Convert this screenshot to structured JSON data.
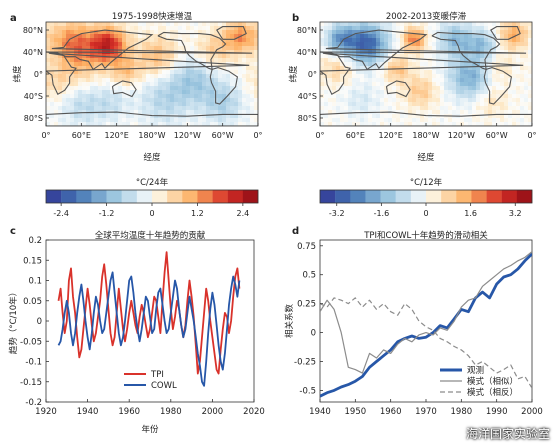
{
  "watermark": "海洋国家实验室",
  "chart_data": [
    {
      "panel": "a",
      "type": "heatmap",
      "title": "1975-1998快速增温",
      "ylabel": "纬度",
      "xlabel": "经度",
      "x_ticks": [
        "0°",
        "60°E",
        "120°E",
        "180°W",
        "120°W",
        "60°W",
        "0°"
      ],
      "y_ticks": [
        "80°N",
        "40°N",
        "0°",
        "40°S",
        "80°S"
      ],
      "colorbar": {
        "label": "°C/24年",
        "ticks": [
          "-2.4",
          "-1.2",
          "0",
          "1.2",
          "2.4"
        ],
        "range": [
          -2.8,
          2.8
        ]
      },
      "anomalies": [
        {
          "lon": 105,
          "lat": 50,
          "value": 2.2,
          "spread": 22
        },
        {
          "lon": 45,
          "lat": 55,
          "value": 1.4,
          "spread": 26
        },
        {
          "lon": 330,
          "lat": 65,
          "value": 1.3,
          "spread": 20
        },
        {
          "lon": 60,
          "lat": 15,
          "value": 0.6,
          "spread": 25
        },
        {
          "lon": 190,
          "lat": 30,
          "value": 0.9,
          "spread": 25
        },
        {
          "lon": 135,
          "lat": 5,
          "value": 0.8,
          "spread": 18
        },
        {
          "lon": 285,
          "lat": 40,
          "value": 0.7,
          "spread": 22
        },
        {
          "lon": 250,
          "lat": -10,
          "value": -0.9,
          "spread": 28
        },
        {
          "lon": 200,
          "lat": -45,
          "value": -0.7,
          "spread": 30
        },
        {
          "lon": 300,
          "lat": -50,
          "value": -0.8,
          "spread": 25
        },
        {
          "lon": 60,
          "lat": -55,
          "value": -0.6,
          "spread": 25
        },
        {
          "lon": 15,
          "lat": -15,
          "value": 0.5,
          "spread": 22
        },
        {
          "lon": 110,
          "lat": -50,
          "value": -0.5,
          "spread": 22
        }
      ]
    },
    {
      "panel": "b",
      "type": "heatmap",
      "title": "2002-2013变暖停滞",
      "ylabel": "纬度",
      "xlabel": "经度",
      "x_ticks": [
        "0°",
        "60°E",
        "120°E",
        "180°W",
        "120°W",
        "60°W",
        "0°"
      ],
      "y_ticks": [
        "80°N",
        "40°N",
        "0°",
        "40°S",
        "80°S"
      ],
      "colorbar": {
        "label": "°C/12年",
        "ticks": [
          "-3.2",
          "-1.6",
          "0",
          "1.6",
          "3.2"
        ],
        "range": [
          -3.8,
          3.8
        ]
      },
      "anomalies": [
        {
          "lon": 80,
          "lat": 52,
          "value": -3.0,
          "spread": 24
        },
        {
          "lon": 35,
          "lat": 60,
          "value": -2.0,
          "spread": 18
        },
        {
          "lon": 160,
          "lat": 60,
          "value": 2.0,
          "spread": 14
        },
        {
          "lon": 330,
          "lat": 68,
          "value": 1.5,
          "spread": 18
        },
        {
          "lon": 230,
          "lat": 60,
          "value": -1.6,
          "spread": 20
        },
        {
          "lon": 275,
          "lat": 50,
          "value": -1.4,
          "spread": 18
        },
        {
          "lon": 255,
          "lat": -5,
          "value": -1.8,
          "spread": 26
        },
        {
          "lon": 130,
          "lat": 10,
          "value": 1.2,
          "spread": 16
        },
        {
          "lon": 170,
          "lat": -30,
          "value": 1.0,
          "spread": 20
        },
        {
          "lon": 30,
          "lat": 10,
          "value": 0.8,
          "spread": 20
        },
        {
          "lon": 300,
          "lat": 10,
          "value": 0.7,
          "spread": 18
        },
        {
          "lon": 290,
          "lat": -45,
          "value": 0.6,
          "spread": 20
        },
        {
          "lon": 70,
          "lat": -45,
          "value": -0.5,
          "spread": 22
        }
      ]
    },
    {
      "panel": "c",
      "type": "line",
      "title": "全球平均温度十年趋势的贡献",
      "xlabel": "年份",
      "ylabel": "趋势（°C/10年）",
      "xlim": [
        1920,
        2020
      ],
      "ylim": [
        -0.2,
        0.2
      ],
      "x_ticks": [
        1920,
        1940,
        1960,
        1980,
        2000,
        2020
      ],
      "y_ticks": [
        -0.2,
        -0.15,
        -0.1,
        -0.05,
        0,
        0.05,
        0.1,
        0.15,
        0.2
      ],
      "y_tick_labels": [
        "-0.2",
        "-0.15",
        "-0.1",
        "-0.05",
        "0",
        "0.05",
        "0.1",
        "0.15",
        "0.2"
      ],
      "legend_position": "bottom-center",
      "series": [
        {
          "name": "TPI",
          "color": "#d9322b",
          "x": [
            1926,
            1927,
            1928,
            1929,
            1930,
            1931,
            1932,
            1933,
            1934,
            1935,
            1936,
            1937,
            1938,
            1939,
            1940,
            1941,
            1942,
            1943,
            1944,
            1945,
            1946,
            1947,
            1948,
            1949,
            1950,
            1951,
            1952,
            1953,
            1954,
            1955,
            1956,
            1957,
            1958,
            1959,
            1960,
            1961,
            1962,
            1963,
            1964,
            1965,
            1966,
            1967,
            1968,
            1969,
            1970,
            1971,
            1972,
            1973,
            1974,
            1975,
            1976,
            1977,
            1978,
            1979,
            1980,
            1981,
            1982,
            1983,
            1984,
            1985,
            1986,
            1987,
            1988,
            1989,
            1990,
            1991,
            1992,
            1993,
            1994,
            1995,
            1996,
            1997,
            1998,
            1999,
            2000,
            2001,
            2002,
            2003,
            2004,
            2005,
            2006,
            2007,
            2008,
            2009,
            2010,
            2011,
            2012,
            2013
          ],
          "y": [
            0.05,
            0.08,
            0.02,
            -0.03,
            0.0,
            0.1,
            0.13,
            0.06,
            0.02,
            -0.04,
            -0.09,
            -0.07,
            -0.02,
            0.03,
            0.08,
            0.04,
            -0.01,
            -0.05,
            -0.03,
            0.01,
            0.05,
            0.11,
            0.14,
            0.09,
            0.03,
            -0.03,
            -0.06,
            -0.04,
            0.02,
            0.08,
            0.03,
            -0.02,
            -0.05,
            -0.02,
            0.02,
            0.05,
            0.02,
            -0.01,
            -0.03,
            0.01,
            0.04,
            0.02,
            -0.01,
            -0.04,
            -0.02,
            0.02,
            0.06,
            0.05,
            0.01,
            -0.03,
            0.05,
            0.12,
            0.17,
            0.1,
            0.03,
            -0.02,
            0.01,
            0.05,
            0.03,
            -0.01,
            -0.04,
            -0.01,
            0.05,
            0.1,
            0.06,
            0.01,
            -0.06,
            -0.13,
            -0.1,
            -0.04,
            0.02,
            0.08,
            0.05,
            0.0,
            -0.04,
            -0.08,
            -0.12,
            -0.13,
            -0.07,
            -0.02,
            0.02,
            0.01,
            -0.03,
            0.0,
            0.06,
            0.11,
            0.13,
            0.08
          ]
        },
        {
          "name": "COWL",
          "color": "#2757a8",
          "x": [
            1926,
            1927,
            1928,
            1929,
            1930,
            1931,
            1932,
            1933,
            1934,
            1935,
            1936,
            1937,
            1938,
            1939,
            1940,
            1941,
            1942,
            1943,
            1944,
            1945,
            1946,
            1947,
            1948,
            1949,
            1950,
            1951,
            1952,
            1953,
            1954,
            1955,
            1956,
            1957,
            1958,
            1959,
            1960,
            1961,
            1962,
            1963,
            1964,
            1965,
            1966,
            1967,
            1968,
            1969,
            1970,
            1971,
            1972,
            1973,
            1974,
            1975,
            1976,
            1977,
            1978,
            1979,
            1980,
            1981,
            1982,
            1983,
            1984,
            1985,
            1986,
            1987,
            1988,
            1989,
            1990,
            1991,
            1992,
            1993,
            1994,
            1995,
            1996,
            1997,
            1998,
            1999,
            2000,
            2001,
            2002,
            2003,
            2004,
            2005,
            2006,
            2007,
            2008,
            2009,
            2010,
            2011,
            2012,
            2013
          ],
          "y": [
            -0.06,
            -0.05,
            -0.02,
            0.02,
            0.05,
            0.02,
            -0.03,
            -0.06,
            -0.03,
            0.02,
            0.06,
            0.09,
            0.05,
            0.0,
            -0.04,
            -0.07,
            -0.03,
            0.02,
            0.06,
            0.04,
            0.0,
            -0.03,
            -0.02,
            0.02,
            0.06,
            0.1,
            0.12,
            0.07,
            0.02,
            -0.03,
            -0.06,
            -0.04,
            0.0,
            0.05,
            0.1,
            0.11,
            0.07,
            0.02,
            -0.02,
            -0.05,
            -0.02,
            0.02,
            0.06,
            0.05,
            0.01,
            -0.03,
            -0.02,
            0.03,
            0.07,
            0.08,
            0.04,
            0.0,
            -0.03,
            -0.02,
            0.02,
            0.06,
            0.1,
            0.08,
            0.03,
            -0.01,
            -0.04,
            -0.02,
            0.02,
            0.06,
            0.03,
            0.0,
            -0.04,
            -0.08,
            -0.11,
            -0.15,
            -0.16,
            -0.1,
            -0.03,
            0.03,
            0.07,
            0.04,
            -0.01,
            -0.06,
            -0.1,
            -0.12,
            -0.08,
            -0.02,
            0.04,
            0.08,
            0.11,
            0.09,
            0.06,
            0.1
          ]
        }
      ]
    },
    {
      "panel": "d",
      "type": "line",
      "title": "TPI和COWL十年趋势的滑动相关",
      "xlabel": "",
      "ylabel": "相关系数",
      "xlim": [
        1940,
        2000
      ],
      "ylim": [
        -0.6,
        0.8
      ],
      "x_ticks": [
        1940,
        1950,
        1960,
        1970,
        1980,
        1990,
        2000
      ],
      "y_ticks": [
        -0.5,
        -0.25,
        0,
        0.25,
        0.5,
        0.75
      ],
      "y_tick_labels": [
        "-0.5",
        "-0.25",
        "0",
        "0.25",
        "0.5",
        "0.75"
      ],
      "legend_position": "bottom-right",
      "series": [
        {
          "name": "观测",
          "color": "#2757a8",
          "style": "solid-thick",
          "x": [
            1940,
            1942,
            1944,
            1946,
            1948,
            1950,
            1952,
            1954,
            1956,
            1958,
            1960,
            1962,
            1964,
            1966,
            1968,
            1970,
            1972,
            1974,
            1976,
            1978,
            1980,
            1982,
            1984,
            1986,
            1988,
            1990,
            1992,
            1994,
            1996,
            1998,
            2000
          ],
          "y": [
            -0.55,
            -0.52,
            -0.5,
            -0.47,
            -0.45,
            -0.42,
            -0.38,
            -0.3,
            -0.25,
            -0.2,
            -0.15,
            -0.08,
            -0.05,
            -0.03,
            -0.05,
            -0.04,
            0.0,
            0.06,
            0.04,
            0.12,
            0.2,
            0.18,
            0.3,
            0.35,
            0.3,
            0.42,
            0.48,
            0.5,
            0.55,
            0.62,
            0.68
          ]
        },
        {
          "name": "模式（相似）",
          "color": "#8c8c8c",
          "style": "solid",
          "x": [
            1940,
            1942,
            1944,
            1946,
            1948,
            1950,
            1952,
            1954,
            1956,
            1958,
            1960,
            1962,
            1964,
            1966,
            1968,
            1970,
            1972,
            1974,
            1976,
            1978,
            1980,
            1982,
            1984,
            1986,
            1988,
            1990,
            1992,
            1994,
            1996,
            1998,
            2000
          ],
          "y": [
            0.18,
            0.28,
            0.2,
            0.0,
            -0.3,
            -0.32,
            -0.35,
            -0.18,
            -0.22,
            -0.15,
            -0.18,
            -0.1,
            -0.05,
            -0.08,
            -0.02,
            0.0,
            -0.02,
            0.04,
            0.02,
            0.1,
            0.22,
            0.28,
            0.3,
            0.4,
            0.45,
            0.5,
            0.55,
            0.58,
            0.62,
            0.65,
            0.7
          ]
        },
        {
          "name": "模式（相反）",
          "color": "#8c8c8c",
          "style": "dashed",
          "x": [
            1940,
            1942,
            1944,
            1946,
            1948,
            1950,
            1952,
            1954,
            1956,
            1958,
            1960,
            1962,
            1964,
            1966,
            1968,
            1970,
            1972,
            1974,
            1976,
            1978,
            1980,
            1982,
            1984,
            1986,
            1988,
            1990,
            1992,
            1994,
            1996,
            1998,
            2000
          ],
          "y": [
            0.25,
            0.22,
            0.3,
            0.28,
            0.25,
            0.3,
            0.22,
            0.28,
            0.2,
            0.25,
            0.18,
            0.15,
            0.25,
            0.2,
            0.1,
            0.05,
            0.02,
            -0.05,
            -0.08,
            -0.12,
            -0.15,
            -0.2,
            -0.28,
            -0.25,
            -0.3,
            -0.35,
            -0.32,
            -0.28,
            -0.4,
            -0.38,
            -0.48
          ]
        }
      ]
    }
  ]
}
